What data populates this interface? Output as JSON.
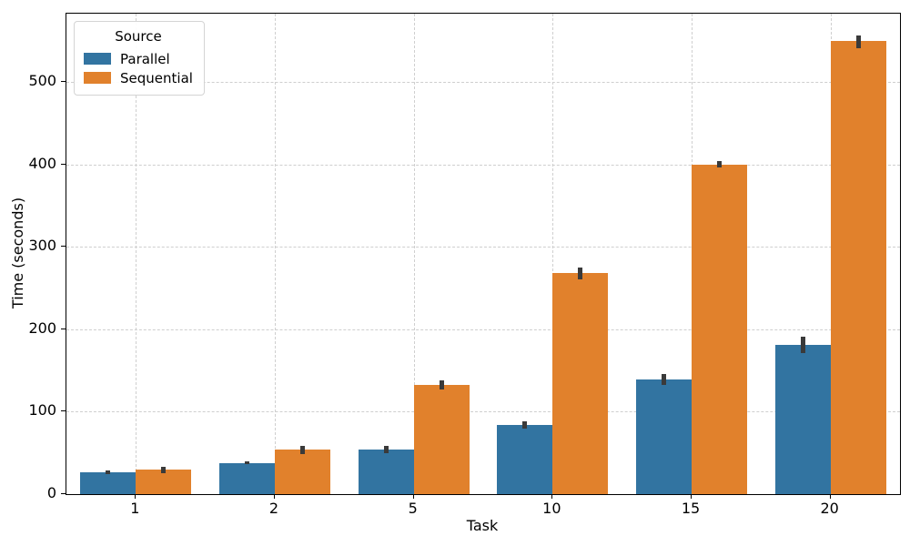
{
  "chart_data": {
    "type": "bar",
    "title": "",
    "xlabel": "Task",
    "ylabel": "Time (seconds)",
    "categories": [
      "1",
      "2",
      "5",
      "10",
      "15",
      "20"
    ],
    "yticks": [
      0,
      100,
      200,
      300,
      400,
      500
    ],
    "ylim": [
      0,
      583
    ],
    "grid": "dashed-both-axes",
    "legend": {
      "title": "Source",
      "position": "upper-left"
    },
    "series": [
      {
        "name": "Parallel",
        "color": "#3274a1",
        "values": [
          26,
          38,
          54,
          84,
          139,
          181
        ],
        "ci": [
          [
            24,
            29
          ],
          [
            36,
            40
          ],
          [
            50,
            58
          ],
          [
            79,
            88
          ],
          [
            133,
            146
          ],
          [
            171,
            191
          ]
        ]
      },
      {
        "name": "Sequential",
        "color": "#e1812c",
        "values": [
          30,
          54,
          132,
          268,
          400,
          550
        ],
        "ci": [
          [
            25,
            33
          ],
          [
            49,
            58
          ],
          [
            127,
            138
          ],
          [
            261,
            275
          ],
          [
            396,
            404
          ],
          [
            541,
            557
          ]
        ]
      }
    ],
    "error_bar_color": "#3a3a3a",
    "gridline_color": "#cfcfcf"
  }
}
